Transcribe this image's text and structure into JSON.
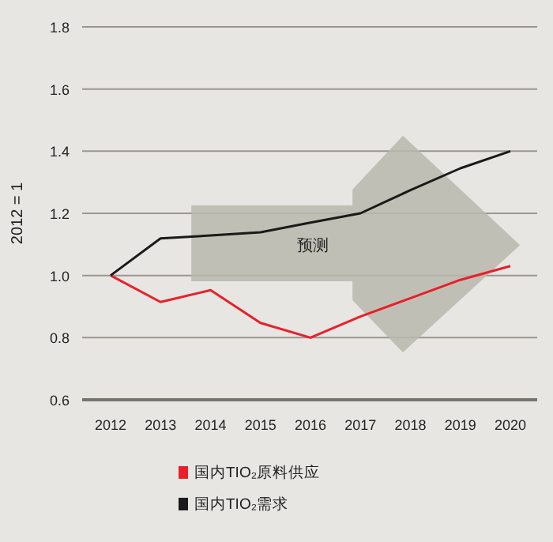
{
  "chart_data": {
    "type": "line",
    "ylabel": "2012 = 1",
    "categories": [
      "2012",
      "2013",
      "2014",
      "2015",
      "2016",
      "2017",
      "2018",
      "2019",
      "2020"
    ],
    "series": [
      {
        "name": "国内TIO₂原料供应",
        "color": "#e8202a",
        "values": [
          1.0,
          0.915,
          0.953,
          0.847,
          0.8,
          0.868,
          0.927,
          0.986,
          1.03
        ]
      },
      {
        "name": "国内TIO₂需求",
        "color": "#1a1a1a",
        "values": [
          1.0,
          1.119,
          1.129,
          1.139,
          1.17,
          1.2,
          1.275,
          1.345,
          1.4
        ]
      }
    ],
    "ylim": [
      0.6,
      1.8
    ],
    "yticks": [
      {
        "value": 0.6,
        "label": "0.6"
      },
      {
        "value": 0.8,
        "label": "0.8"
      },
      {
        "value": 1.0,
        "label": "1.0"
      },
      {
        "value": 1.2,
        "label": "1.2"
      },
      {
        "value": 1.4,
        "label": "1.4"
      },
      {
        "value": 1.6,
        "label": "1.6"
      },
      {
        "value": 1.8,
        "label": "1.8"
      }
    ],
    "grid": "y",
    "legend": "bottom",
    "marker": "none",
    "line_style": "solid",
    "annotations": [
      "预测"
    ]
  }
}
